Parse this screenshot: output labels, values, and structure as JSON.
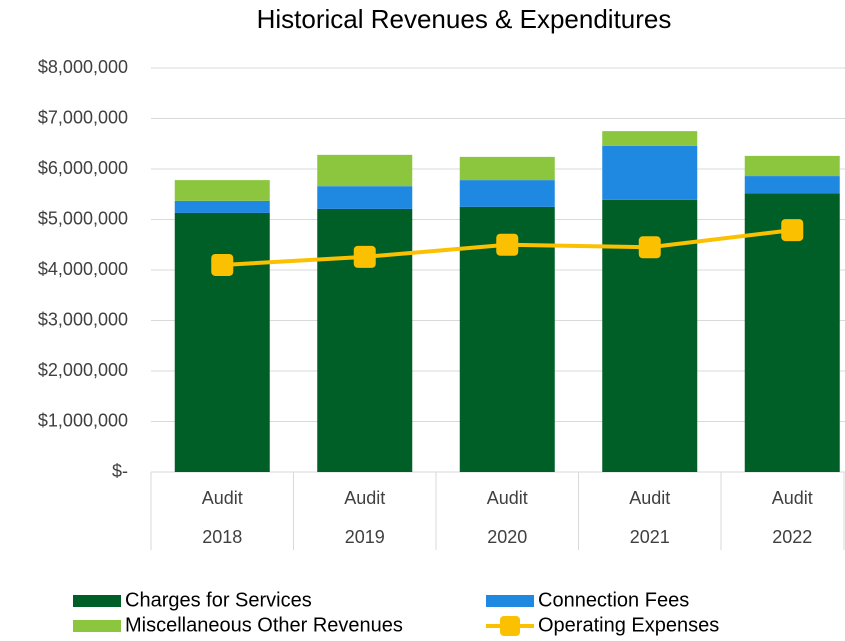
{
  "chart_data": {
    "type": "bar",
    "stacked": true,
    "title": "Historical Revenues & Expenditures",
    "categories": [
      [
        "Audit",
        "2018"
      ],
      [
        "Audit",
        "2019"
      ],
      [
        "Audit",
        "2020"
      ],
      [
        "Audit",
        "2021"
      ],
      [
        "Audit",
        "2022"
      ]
    ],
    "series": [
      {
        "name": "Charges for Services",
        "color": "#005f27",
        "type": "bar",
        "values": [
          5130000,
          5210000,
          5250000,
          5390000,
          5520000
        ]
      },
      {
        "name": "Connection Fees",
        "color": "#1f88e0",
        "type": "bar",
        "values": [
          240000,
          450000,
          530000,
          1070000,
          340000
        ]
      },
      {
        "name": "Miscellaneous Other Revenues",
        "color": "#8cc63f",
        "type": "bar",
        "values": [
          410000,
          620000,
          460000,
          290000,
          400000
        ]
      },
      {
        "name": "Operating Expenses",
        "color": "#fbc100",
        "type": "line",
        "values": [
          4100000,
          4260000,
          4500000,
          4450000,
          4790000
        ]
      }
    ],
    "ylim": [
      0,
      8000000
    ],
    "yticks": [
      {
        "value": 0,
        "label": "$-"
      },
      {
        "value": 1000000,
        "label": "$1,000,000"
      },
      {
        "value": 2000000,
        "label": "$2,000,000"
      },
      {
        "value": 3000000,
        "label": "$3,000,000"
      },
      {
        "value": 4000000,
        "label": "$4,000,000"
      },
      {
        "value": 5000000,
        "label": "$5,000,000"
      },
      {
        "value": 6000000,
        "label": "$6,000,000"
      },
      {
        "value": 7000000,
        "label": "$7,000,000"
      },
      {
        "value": 8000000,
        "label": "$8,000,000"
      }
    ],
    "grid": true,
    "legend": "bottom"
  }
}
